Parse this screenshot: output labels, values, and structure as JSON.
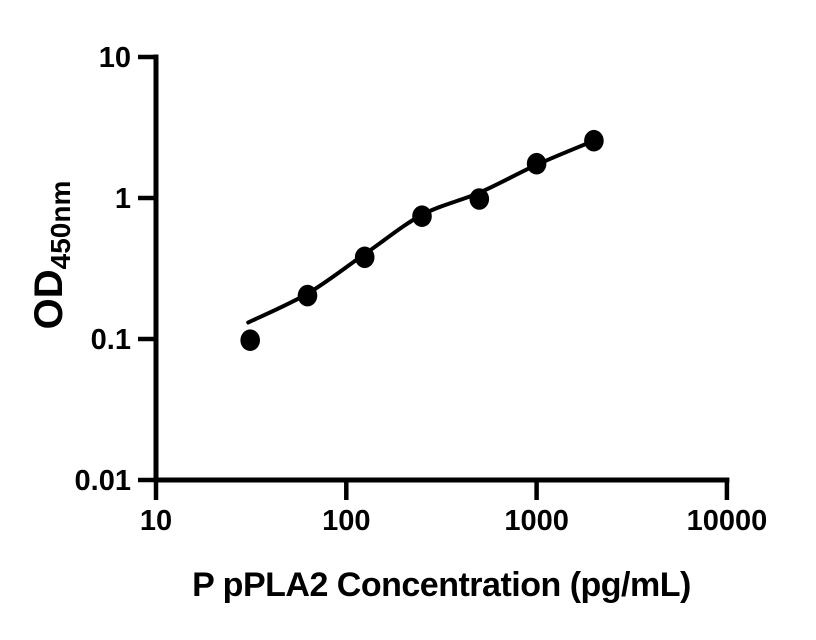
{
  "figure": {
    "background": "#ffffff",
    "ink_color": "#000000"
  },
  "chart_data": {
    "type": "scatter",
    "title": "",
    "xlabel": "P pPLA2 Concentration (pg/mL)",
    "ylabel_main": "OD",
    "ylabel_sub": "450nm",
    "x_scale": "log10",
    "y_scale": "log10",
    "xlim": [
      10,
      10000
    ],
    "ylim": [
      0.01,
      10
    ],
    "grid": false,
    "legend": null,
    "x_ticks": {
      "values": [
        10,
        100,
        1000,
        10000
      ],
      "labels": [
        "10",
        "100",
        "1000",
        "10000"
      ]
    },
    "y_ticks": {
      "values": [
        10,
        1,
        0.1,
        0.01
      ],
      "labels": [
        "10",
        "1",
        "0.1",
        "0.01"
      ]
    },
    "series": [
      {
        "name": "standard-points",
        "type": "scatter",
        "marker": "filled-circle",
        "color": "#000000",
        "x": [
          31.25,
          62.5,
          125,
          250,
          500,
          1000,
          2000
        ],
        "y": [
          0.098,
          0.203,
          0.38,
          0.743,
          0.984,
          1.75,
          2.55
        ]
      },
      {
        "name": "fitted-curve",
        "type": "line",
        "color": "#000000",
        "x": [
          30.5,
          62.5,
          125,
          250,
          500,
          1000,
          2000
        ],
        "y": [
          0.131,
          0.21,
          0.4,
          0.76,
          1.09,
          1.72,
          2.55
        ]
      }
    ]
  }
}
